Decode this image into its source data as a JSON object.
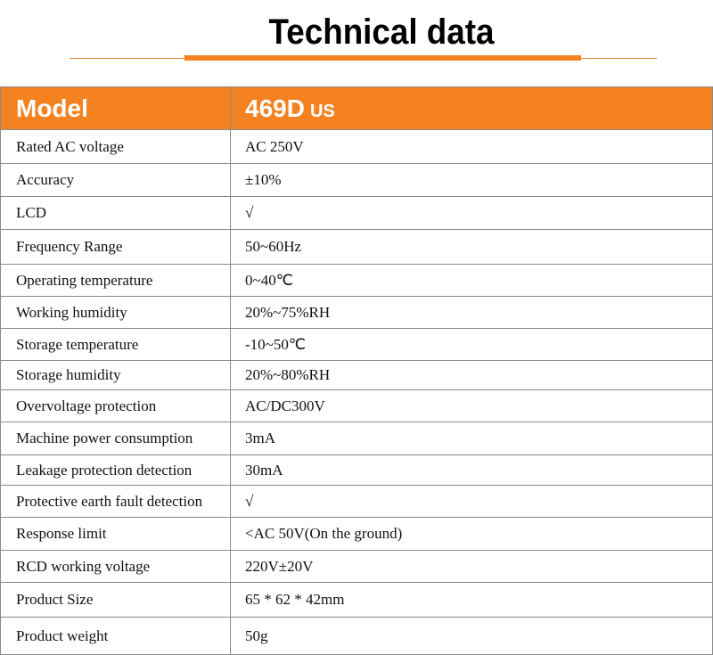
{
  "title": "Technical data",
  "accent_color": "#F58220",
  "header": {
    "label": "Model",
    "model": "469D",
    "model_suffix": "US"
  },
  "rows": [
    {
      "label": "Rated AC voltage",
      "value": "AC  250V"
    },
    {
      "label": "Accuracy",
      "value": "±10%"
    },
    {
      "label": "LCD",
      "value": "√"
    },
    {
      "label": "Frequency Range",
      "value": "50~60Hz"
    },
    {
      "label": "Operating temperature",
      "value": "0~40℃"
    },
    {
      "label": "Working humidity",
      "value": "20%~75%RH"
    },
    {
      "label": "Storage temperature",
      "value": "-10~50℃"
    },
    {
      "label": "Storage humidity",
      "value": "20%~80%RH"
    },
    {
      "label": "Overvoltage protection",
      "value": "AC/DC300V"
    },
    {
      "label": "Machine power consumption",
      "value": "3mA"
    },
    {
      "label": "Leakage protection detection",
      "value": "30mA"
    },
    {
      "label": "Protective earth fault detection",
      "value": "√"
    },
    {
      "label": "Response limit",
      "value": "<AC 50V(On the ground)"
    },
    {
      "label": "RCD working voltage",
      "value": "220V±20V"
    },
    {
      "label": "Product Size",
      "value": "65 * 62 * 42mm"
    },
    {
      "label": "Product weight",
      "value": "50g"
    }
  ]
}
